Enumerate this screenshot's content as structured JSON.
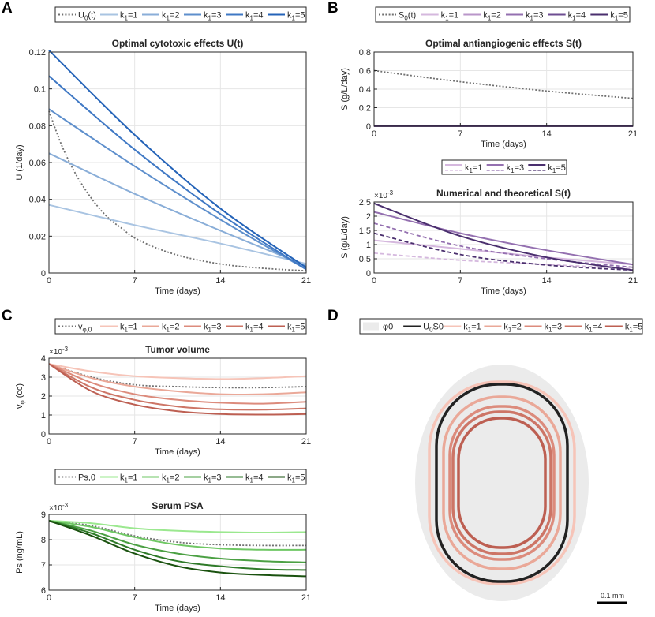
{
  "panels": [
    {
      "letter": "A",
      "title": "Optimal cytotoxic effects U(t)",
      "type": "line",
      "xlabel": "Time (days)",
      "ylabel": "U (1/day)",
      "xlim": [
        0,
        21
      ],
      "ylim": [
        0,
        0.12
      ],
      "xticks": [
        0,
        7,
        14,
        21
      ],
      "xtick_labels": [
        "0",
        "7",
        "14",
        "21"
      ],
      "yticks": [
        0,
        0.02,
        0.04,
        0.06,
        0.08,
        0.1,
        0.12
      ],
      "ytick_labels": [
        "0",
        "0.02",
        "0.04",
        "0.06",
        "0.08",
        "0.1",
        "0.12"
      ],
      "legend": [
        "U0(t)",
        "k1=1",
        "k1=2",
        "k1=3",
        "k1=4",
        "k1=5"
      ],
      "series": [
        {
          "name": "U0(t)",
          "style": "dotted",
          "color": "#707070",
          "x": [
            0,
            1,
            2,
            3,
            4,
            5,
            6,
            7,
            9,
            11,
            13,
            15,
            17,
            19,
            21
          ],
          "values": [
            0.088,
            0.07,
            0.056,
            0.045,
            0.036,
            0.029,
            0.024,
            0.019,
            0.013,
            0.0088,
            0.006,
            0.004,
            0.0028,
            0.0019,
            0.0012
          ]
        },
        {
          "name": "k1=1",
          "style": "solid",
          "color": "#a9c4e2",
          "x": [
            0,
            7,
            14,
            21
          ],
          "values": [
            0.037,
            0.026,
            0.016,
            0.005
          ]
        },
        {
          "name": "k1=2",
          "style": "solid",
          "color": "#8aaed8",
          "x": [
            0,
            7,
            14,
            21
          ],
          "values": [
            0.065,
            0.043,
            0.023,
            0.004
          ]
        },
        {
          "name": "k1=3",
          "style": "solid",
          "color": "#5e8fcc",
          "x": [
            0,
            7,
            14,
            21
          ],
          "values": [
            0.089,
            0.058,
            0.029,
            0.002
          ]
        },
        {
          "name": "k1=4",
          "style": "solid",
          "color": "#3f78c4",
          "x": [
            0,
            7,
            14,
            21
          ],
          "values": [
            0.107,
            0.067,
            0.032,
            0.002
          ]
        },
        {
          "name": "k1=5",
          "style": "solid",
          "color": "#2463b8",
          "x": [
            0,
            7,
            14,
            21
          ],
          "values": [
            0.121,
            0.075,
            0.035,
            0.003
          ]
        }
      ]
    },
    {
      "letter": "B",
      "title": "Optimal antiangiogenic effects S(t)",
      "type": "line",
      "xlabel": "Time (days)",
      "ylabel": "S (g/L/day)",
      "xlim": [
        0,
        21
      ],
      "ylim": [
        0,
        0.8
      ],
      "xticks": [
        0,
        7,
        14,
        21
      ],
      "xtick_labels": [
        "0",
        "7",
        "14",
        "21"
      ],
      "yticks": [
        0,
        0.2,
        0.4,
        0.6,
        0.8
      ],
      "ytick_labels": [
        "0",
        "0.2",
        "0.4",
        "0.6",
        "0.8"
      ],
      "legend": [
        "S0(t)",
        "k1=1",
        "k1=2",
        "k1=3",
        "k1=4",
        "k1=5"
      ],
      "series": [
        {
          "name": "S0(t)",
          "style": "dotted",
          "color": "#707070",
          "x": [
            0,
            7,
            14,
            21
          ],
          "values": [
            0.6,
            0.48,
            0.38,
            0.3
          ]
        },
        {
          "name": "k1=1",
          "style": "solid",
          "color": "#d5b8de",
          "x": [
            0,
            21
          ],
          "values": [
            0.002,
            0.002
          ]
        },
        {
          "name": "k1=2",
          "style": "solid",
          "color": "#b996c9",
          "x": [
            0,
            21
          ],
          "values": [
            0.002,
            0.002
          ]
        },
        {
          "name": "k1=3",
          "style": "solid",
          "color": "#9470b0",
          "x": [
            0,
            21
          ],
          "values": [
            0.002,
            0.002
          ]
        },
        {
          "name": "k1=4",
          "style": "solid",
          "color": "#6e4d92",
          "x": [
            0,
            21
          ],
          "values": [
            0.002,
            0.002
          ]
        },
        {
          "name": "k1=5",
          "style": "solid",
          "color": "#4a2f6e",
          "x": [
            0,
            21
          ],
          "values": [
            0.002,
            0.002
          ]
        }
      ]
    },
    {
      "letter": "",
      "title": "Numerical and theoretical S(t)",
      "type": "line",
      "xlabel": "Time (days)",
      "ylabel": "S (g/L/day)",
      "exponent": "×10-3",
      "xlim": [
        0,
        21
      ],
      "ylim": [
        0,
        2.5
      ],
      "xticks": [
        0,
        7,
        14,
        21
      ],
      "xtick_labels": [
        "0",
        "7",
        "14",
        "21"
      ],
      "yticks": [
        0,
        0.5,
        1,
        1.5,
        2,
        2.5
      ],
      "ytick_labels": [
        "0",
        "0.5",
        "1",
        "1.5",
        "2",
        "2.5"
      ],
      "legend": [
        "k1=1",
        "k1=3",
        "k1=5"
      ],
      "series": [
        {
          "name": "k1=1",
          "style": "solid",
          "color": "#d5b8de",
          "x": [
            0,
            7,
            14,
            21
          ],
          "values": [
            1.15,
            0.85,
            0.55,
            0.3
          ]
        },
        {
          "name": "k1=1 theoretical",
          "style": "dashed",
          "color": "#d5b8de",
          "x": [
            0,
            7,
            14,
            21
          ],
          "values": [
            0.7,
            0.45,
            0.3,
            0.15
          ]
        },
        {
          "name": "k1=3",
          "style": "solid",
          "color": "#9470b0",
          "x": [
            0,
            7,
            14,
            21
          ],
          "values": [
            2.15,
            1.4,
            0.8,
            0.3
          ]
        },
        {
          "name": "k1=3 theoretical",
          "style": "dashed",
          "color": "#9470b0",
          "x": [
            0,
            7,
            14,
            21
          ],
          "values": [
            1.75,
            0.95,
            0.5,
            0.2
          ]
        },
        {
          "name": "k1=5",
          "style": "solid",
          "color": "#4a2f6e",
          "x": [
            0,
            7,
            14,
            21
          ],
          "values": [
            2.45,
            1.3,
            0.55,
            0.1
          ]
        },
        {
          "name": "k1=5 theoretical",
          "style": "dashed",
          "color": "#4a2f6e",
          "x": [
            0,
            7,
            14,
            21
          ],
          "values": [
            1.4,
            0.65,
            0.28,
            0.1
          ]
        }
      ]
    },
    {
      "letter": "C",
      "title": "Tumor volume",
      "type": "line",
      "xlabel": "Time (days)",
      "ylabel": "vφ (cc)",
      "exponent": "×10-3",
      "xlim": [
        0,
        21
      ],
      "ylim": [
        0,
        4
      ],
      "xticks": [
        0,
        7,
        14,
        21
      ],
      "xtick_labels": [
        "0",
        "7",
        "14",
        "21"
      ],
      "yticks": [
        0,
        1,
        2,
        3,
        4
      ],
      "ytick_labels": [
        "0",
        "1",
        "2",
        "3",
        "4"
      ],
      "legend": [
        "vφ,0",
        "k1=1",
        "k1=2",
        "k1=3",
        "k1=4",
        "k1=5"
      ],
      "series": [
        {
          "name": "vφ,0",
          "style": "dotted",
          "color": "#707070",
          "x": [
            0,
            3.5,
            7,
            10.5,
            14,
            17.5,
            21
          ],
          "values": [
            3.7,
            3.0,
            2.6,
            2.5,
            2.45,
            2.45,
            2.5
          ]
        },
        {
          "name": "k1=1",
          "style": "solid",
          "color": "#f6c4b8",
          "x": [
            0,
            3.5,
            7,
            10.5,
            14,
            17.5,
            21
          ],
          "values": [
            3.7,
            3.3,
            3.05,
            2.95,
            2.9,
            2.95,
            3.05
          ]
        },
        {
          "name": "k1=2",
          "style": "solid",
          "color": "#eaa898",
          "x": [
            0,
            3.5,
            7,
            10.5,
            14,
            17.5,
            21
          ],
          "values": [
            3.7,
            2.95,
            2.5,
            2.25,
            2.1,
            2.1,
            2.2
          ]
        },
        {
          "name": "k1=3",
          "style": "solid",
          "color": "#dc8b7c",
          "x": [
            0,
            3.5,
            7,
            10.5,
            14,
            17.5,
            21
          ],
          "values": [
            3.7,
            2.7,
            2.1,
            1.8,
            1.65,
            1.6,
            1.7
          ]
        },
        {
          "name": "k1=4",
          "style": "solid",
          "color": "#cd7566",
          "x": [
            0,
            3.5,
            7,
            10.5,
            14,
            17.5,
            21
          ],
          "values": [
            3.7,
            2.45,
            1.8,
            1.45,
            1.3,
            1.28,
            1.35
          ]
        },
        {
          "name": "k1=5",
          "style": "solid",
          "color": "#bd5f52",
          "x": [
            0,
            3.5,
            7,
            10.5,
            14,
            17.5,
            21
          ],
          "values": [
            3.7,
            2.25,
            1.55,
            1.2,
            1.05,
            1.02,
            1.05
          ]
        }
      ]
    },
    {
      "letter": "",
      "title": "Serum PSA",
      "type": "line",
      "xlabel": "Time (days)",
      "ylabel": "Ps (ng/mL)",
      "exponent": "×10-3",
      "xlim": [
        0,
        21
      ],
      "ylim": [
        6,
        9
      ],
      "xticks": [
        0,
        7,
        14,
        21
      ],
      "xtick_labels": [
        "0",
        "7",
        "14",
        "21"
      ],
      "yticks": [
        6,
        7,
        8,
        9
      ],
      "ytick_labels": [
        "6",
        "7",
        "8",
        "9"
      ],
      "legend": [
        "Ps,0",
        "k1=1",
        "k1=2",
        "k1=3",
        "k1=4",
        "k1=5"
      ],
      "series": [
        {
          "name": "Ps,0",
          "style": "dotted",
          "color": "#707070",
          "x": [
            0,
            3.5,
            7,
            10.5,
            14,
            17.5,
            21
          ],
          "values": [
            8.75,
            8.55,
            8.15,
            7.9,
            7.8,
            7.77,
            7.77
          ]
        },
        {
          "name": "k1=1",
          "style": "solid",
          "color": "#9be88f",
          "x": [
            0,
            3.5,
            7,
            10.5,
            14,
            17.5,
            21
          ],
          "values": [
            8.75,
            8.65,
            8.45,
            8.35,
            8.3,
            8.28,
            8.3
          ]
        },
        {
          "name": "k1=2",
          "style": "solid",
          "color": "#6fc764",
          "x": [
            0,
            3.5,
            7,
            10.5,
            14,
            17.5,
            21
          ],
          "values": [
            8.75,
            8.5,
            8.1,
            7.8,
            7.65,
            7.6,
            7.6
          ]
        },
        {
          "name": "k1=3",
          "style": "solid",
          "color": "#4ba043",
          "x": [
            0,
            3.5,
            7,
            10.5,
            14,
            17.5,
            21
          ],
          "values": [
            8.75,
            8.35,
            7.8,
            7.45,
            7.25,
            7.15,
            7.1
          ]
        },
        {
          "name": "k1=4",
          "style": "solid",
          "color": "#2e7a28",
          "x": [
            0,
            3.5,
            7,
            10.5,
            14,
            17.5,
            21
          ],
          "values": [
            8.75,
            8.25,
            7.6,
            7.15,
            6.95,
            6.83,
            6.8
          ]
        },
        {
          "name": "k1=5",
          "style": "solid",
          "color": "#1a520f",
          "x": [
            0,
            3.5,
            7,
            10.5,
            14,
            17.5,
            21
          ],
          "values": [
            8.75,
            8.15,
            7.45,
            6.95,
            6.7,
            6.6,
            6.55
          ]
        }
      ]
    },
    {
      "letter": "D",
      "title": "",
      "type": "contour",
      "legend": [
        "φ0",
        "U0S0",
        "k1=1",
        "k1=2",
        "k1=3",
        "k1=4",
        "k1=5"
      ],
      "contour_colors": {
        "phi0": "#ebebeb",
        "U0S0": "#222222",
        "k1=1": "#f6c4b8",
        "k1=2": "#eaa898",
        "k1=3": "#dc8b7c",
        "k1=4": "#cd7566",
        "k1=5": "#bd5f52"
      },
      "scalebar_label": "0.1 mm"
    }
  ]
}
